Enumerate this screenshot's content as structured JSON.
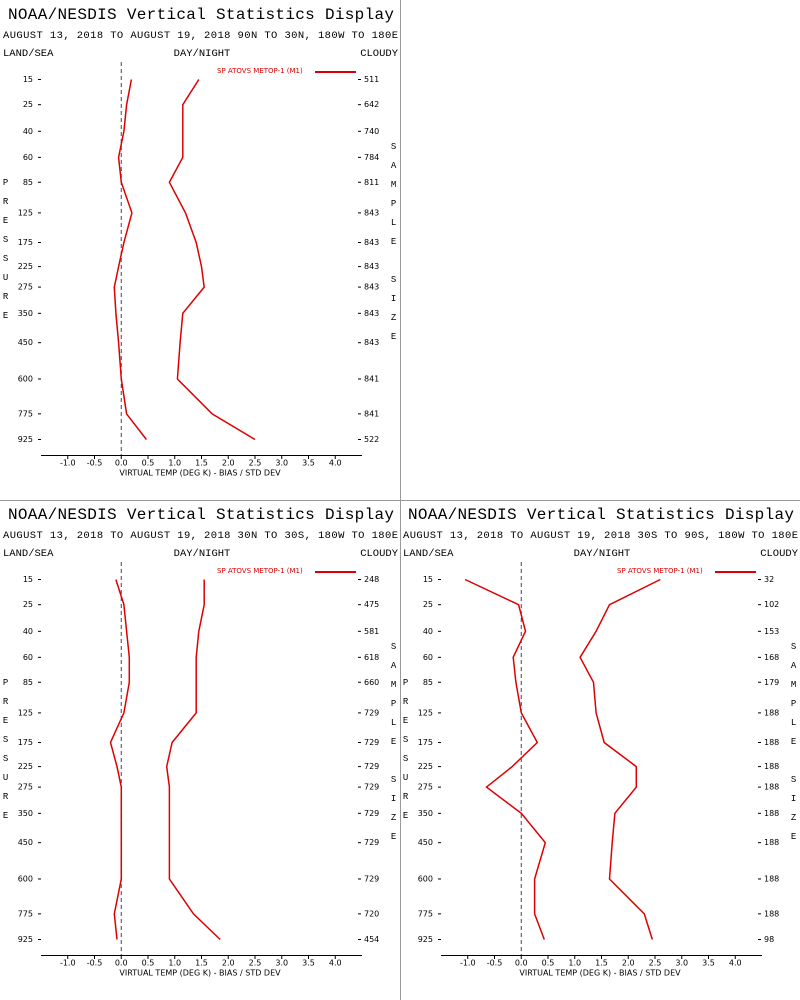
{
  "chart_data": [
    {
      "type": "line",
      "title": "NOAA/NESDIS Vertical Statistics Display",
      "subtitle": "AUGUST 13, 2018 TO AUGUST 19, 2018  90N TO 30N, 180W TO 180E",
      "left_label": "LAND/SEA",
      "center_label": "DAY/NIGHT",
      "right_label": "CLOUDY",
      "ylabel": "PRESSURE",
      "y2label": "SAMPLE SIZE",
      "xlabel": "VIRTUAL TEMP (DEG K) - BIAS / STD DEV",
      "y": [
        15,
        25,
        40,
        60,
        85,
        125,
        175,
        225,
        275,
        350,
        450,
        600,
        775,
        925
      ],
      "ylim": [
        10,
        1025
      ],
      "sample_size": [
        511,
        642,
        740,
        784,
        811,
        843,
        843,
        843,
        843,
        843,
        843,
        841,
        841,
        522
      ],
      "series": [
        {
          "name": "SP ATOVS METOP-1 (M1)",
          "color": "#dd0000",
          "values": [
            0.19,
            0.1,
            0.05,
            -0.05,
            0.0,
            0.2,
            0.05,
            -0.05,
            -0.13,
            -0.1,
            -0.05,
            0.0,
            0.1,
            0.47
          ]
        },
        {
          "color": "#dd0000",
          "values": [
            1.45,
            1.15,
            1.15,
            1.15,
            0.9,
            1.2,
            1.4,
            1.5,
            1.55,
            1.15,
            1.1,
            1.05,
            1.7,
            2.5
          ]
        }
      ],
      "xlim": [
        -1.5,
        4.5
      ],
      "xticks": [
        {
          "value": -1,
          "label": "-1.0"
        },
        {
          "value": -0.5,
          "label": "-0.5"
        },
        {
          "value": 0,
          "label": "0.0"
        },
        0.5,
        {
          "value": 1,
          "label": "1.0"
        },
        1.5,
        {
          "value": 2,
          "label": "2.0"
        },
        2.5,
        {
          "value": 3,
          "label": "3.0"
        },
        3.5,
        {
          "value": 4,
          "label": "4.0"
        }
      ],
      "zero_line": true
    },
    {
      "type": "line",
      "title": "NOAA/NESDIS Vertical Statistics Display",
      "subtitle": "AUGUST 13, 2018 TO AUGUST 19, 2018  30N TO 30S, 180W TO 180E",
      "left_label": "LAND/SEA",
      "center_label": "DAY/NIGHT",
      "right_label": "CLOUDY",
      "ylabel": "PRESSURE",
      "y2label": "SAMPLE SIZE",
      "xlabel": "VIRTUAL TEMP (DEG K) - BIAS / STD DEV",
      "y": [
        15,
        25,
        40,
        60,
        85,
        125,
        175,
        225,
        275,
        350,
        450,
        600,
        775,
        925
      ],
      "ylim": [
        10,
        1025
      ],
      "sample_size": [
        248,
        475,
        581,
        618,
        660,
        729,
        729,
        729,
        729,
        729,
        729,
        729,
        720,
        454
      ],
      "series": [
        {
          "name": "SP ATOVS METOP-1 (M1)",
          "color": "#dd0000",
          "values": [
            -0.1,
            0.05,
            0.1,
            0.15,
            0.15,
            0.05,
            -0.2,
            -0.08,
            0.0,
            0.0,
            0.0,
            0.0,
            -0.13,
            -0.08
          ]
        },
        {
          "color": "#dd0000",
          "values": [
            1.55,
            1.55,
            1.45,
            1.4,
            1.4,
            1.4,
            0.95,
            0.85,
            0.9,
            0.9,
            0.9,
            0.9,
            1.35,
            1.85
          ]
        }
      ],
      "xlim": [
        -1.5,
        4.5
      ],
      "xticks": [
        {
          "value": -1,
          "label": "-1.0"
        },
        {
          "value": -0.5,
          "label": "-0.5"
        },
        {
          "value": 0,
          "label": "0.0"
        },
        0.5,
        {
          "value": 1,
          "label": "1.0"
        },
        1.5,
        {
          "value": 2,
          "label": "2.0"
        },
        2.5,
        {
          "value": 3,
          "label": "3.0"
        },
        3.5,
        {
          "value": 4,
          "label": "4.0"
        }
      ],
      "zero_line": true
    },
    {
      "type": "line",
      "title": "NOAA/NESDIS Vertical Statistics Display",
      "subtitle": "AUGUST 13, 2018 TO AUGUST 19, 2018  30S TO 90S, 180W TO 180E",
      "left_label": "LAND/SEA",
      "center_label": "DAY/NIGHT",
      "right_label": "CLOUDY",
      "ylabel": "PRESSURE",
      "y2label": "SAMPLE SIZE",
      "xlabel": "VIRTUAL TEMP (DEG K) - BIAS / STD DEV",
      "y": [
        15,
        25,
        40,
        60,
        85,
        125,
        175,
        225,
        275,
        350,
        450,
        600,
        775,
        925
      ],
      "ylim": [
        10,
        1025
      ],
      "sample_size": [
        32,
        102,
        153,
        168,
        179,
        188,
        188,
        188,
        188,
        188,
        188,
        188,
        188,
        98
      ],
      "series": [
        {
          "name": "SP ATOVS METOP-1 (M1)",
          "color": "#dd0000",
          "values": [
            -1.05,
            -0.05,
            0.08,
            -0.15,
            -0.1,
            0.0,
            0.3,
            -0.17,
            -0.65,
            0.0,
            0.45,
            0.25,
            0.25,
            0.43
          ]
        },
        {
          "color": "#dd0000",
          "values": [
            2.6,
            1.65,
            1.4,
            1.1,
            1.35,
            1.4,
            1.55,
            2.15,
            2.15,
            1.75,
            1.7,
            1.65,
            2.3,
            2.45
          ]
        }
      ],
      "xlim": [
        -1.5,
        4.5
      ],
      "xticks": [
        {
          "value": -1,
          "label": "-1.0"
        },
        {
          "value": -0.5,
          "label": "-0.5"
        },
        {
          "value": 0,
          "label": "0.0"
        },
        0.5,
        {
          "value": 1,
          "label": "1.0"
        },
        1.5,
        {
          "value": 2,
          "label": "2.0"
        },
        2.5,
        {
          "value": 3,
          "label": "3.0"
        },
        3.5,
        {
          "value": 4,
          "label": "4.0"
        }
      ],
      "zero_line": true
    }
  ]
}
